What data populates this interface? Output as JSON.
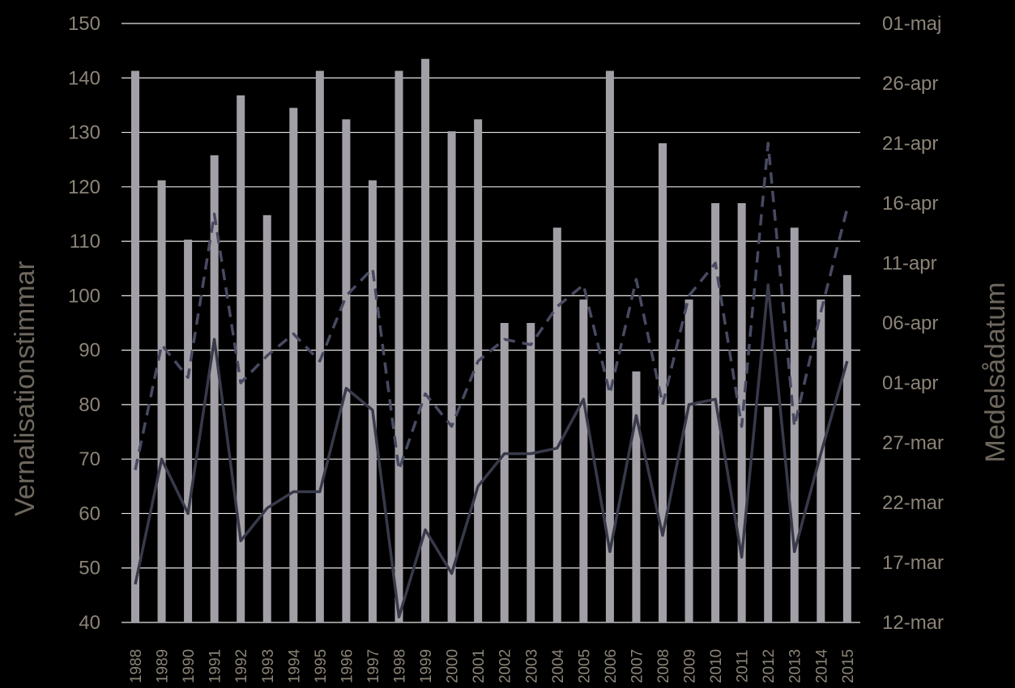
{
  "chart_data": {
    "type": "bar",
    "categories": [
      "1988",
      "1989",
      "1990",
      "1991",
      "1992",
      "1993",
      "1994",
      "1995",
      "1996",
      "1997",
      "1998",
      "1999",
      "2000",
      "2001",
      "2002",
      "2003",
      "2004",
      "2005",
      "2006",
      "2007",
      "2008",
      "2009",
      "2010",
      "2011",
      "2012",
      "2013",
      "2014",
      "2015"
    ],
    "ylabel": "Vernalisationstimmar",
    "ylabel_right": "Medelsådatum",
    "ylim": [
      40,
      150
    ],
    "yticks": [
      40,
      50,
      60,
      70,
      80,
      90,
      100,
      110,
      120,
      130,
      140,
      150
    ],
    "yticks_right": [
      "12-mar",
      "17-mar",
      "22-mar",
      "27-mar",
      "01-apr",
      "06-apr",
      "11-apr",
      "16-apr",
      "21-apr",
      "26-apr",
      "01-maj"
    ],
    "grid": true,
    "series": [
      {
        "kind": "bar",
        "axis": "left",
        "color": "#a2a0a6",
        "values": [
          141.3,
          121.2,
          110.3,
          125.8,
          136.8,
          114.8,
          134.5,
          141.3,
          132.4,
          121.2,
          141.3,
          143.5,
          130.2,
          132.4,
          95.0,
          95.0,
          112.5,
          99.3,
          141.3,
          86.1,
          128.0,
          99.3,
          117.0,
          117.0,
          79.6,
          112.5,
          99.3,
          103.8
        ]
      },
      {
        "kind": "line",
        "axis": "left",
        "style": "solid",
        "color": "#383a4a",
        "values": [
          47,
          70,
          60,
          92,
          55,
          61,
          64,
          64,
          83,
          79,
          41,
          57,
          49,
          65,
          71,
          71,
          72,
          81,
          53,
          78,
          56,
          80,
          81,
          52,
          102,
          53,
          71,
          88
        ]
      },
      {
        "kind": "line",
        "axis": "left",
        "style": "dashed",
        "color": "#484a62",
        "values": [
          68,
          91,
          85,
          115,
          84,
          89,
          93,
          88,
          100,
          105,
          68,
          82,
          76,
          88,
          92,
          91,
          98,
          102,
          82,
          103,
          80,
          100,
          106,
          76,
          128,
          76,
          97,
          116
        ]
      }
    ]
  }
}
